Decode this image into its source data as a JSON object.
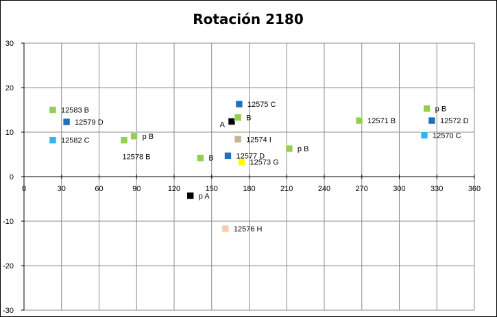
{
  "chart_data": {
    "type": "scatter",
    "title": "Rotación 2180",
    "xlabel": "",
    "ylabel": "",
    "xlim": [
      0,
      360
    ],
    "ylim": [
      -30,
      30
    ],
    "xticks": [
      "0",
      "30",
      "60",
      "90",
      "120",
      "150",
      "180",
      "210",
      "240",
      "270",
      "300",
      "330",
      "360"
    ],
    "yticks": [
      "30",
      "20",
      "10",
      "0",
      "-10",
      "-20",
      "-30"
    ],
    "grid": true,
    "legend": "none",
    "points": [
      {
        "x": 23,
        "y": 15.0,
        "label": "12583 B",
        "color": "#92d050",
        "labelSide": "right"
      },
      {
        "x": 34,
        "y": 12.3,
        "label": "12579 D",
        "color": "#1f6fc5",
        "labelSide": "right"
      },
      {
        "x": 23,
        "y": 8.2,
        "label": "12582 C",
        "color": "#33b5ef",
        "labelSide": "right"
      },
      {
        "x": 80,
        "y": 8.2,
        "label": "12578 B",
        "color": "#92d050",
        "labelSide": "below"
      },
      {
        "x": 88,
        "y": 9.1,
        "label": "p B",
        "color": "#92d050",
        "labelSide": "right"
      },
      {
        "x": 141,
        "y": 4.2,
        "label": "B",
        "color": "#92d050",
        "labelSide": "right"
      },
      {
        "x": 133,
        "y": -4.3,
        "label": "p A",
        "color": "#000000",
        "labelSide": "right"
      },
      {
        "x": 166,
        "y": 12.4,
        "label": "A",
        "color": "#000000",
        "labelSide": "left"
      },
      {
        "x": 171,
        "y": 13.3,
        "label": "B",
        "color": "#92d050",
        "labelSide": "right"
      },
      {
        "x": 172,
        "y": 16.3,
        "label": "12575 C",
        "color": "#1f6fc5",
        "labelSide": "right"
      },
      {
        "x": 171,
        "y": 8.4,
        "label": "12574 I",
        "color": "#c4b593",
        "labelSide": "right"
      },
      {
        "x": 163,
        "y": 4.7,
        "label": "12577 D",
        "color": "#1f6fc5",
        "labelSide": "right"
      },
      {
        "x": 174,
        "y": 3.3,
        "label": "12573 G",
        "color": "#ffff00",
        "labelSide": "right"
      },
      {
        "x": 161,
        "y": -11.7,
        "label": "12576 H",
        "color": "#f9cbaa",
        "labelSide": "right"
      },
      {
        "x": 212,
        "y": 6.3,
        "label": "p B",
        "color": "#92d050",
        "labelSide": "right"
      },
      {
        "x": 268,
        "y": 12.6,
        "label": "12571 B",
        "color": "#92d050",
        "labelSide": "right"
      },
      {
        "x": 322,
        "y": 15.3,
        "label": "p B",
        "color": "#92d050",
        "labelSide": "right"
      },
      {
        "x": 326,
        "y": 12.6,
        "label": "12572 D",
        "color": "#1f6fc5",
        "labelSide": "right"
      },
      {
        "x": 320,
        "y": 9.3,
        "label": "12570 C",
        "color": "#33b5ef",
        "labelSide": "right"
      }
    ]
  }
}
